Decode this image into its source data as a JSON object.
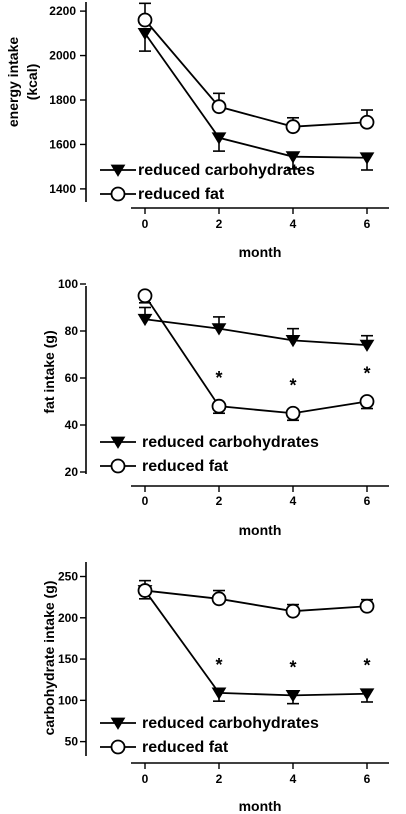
{
  "chart_data": [
    {
      "type": "line",
      "xlabel": "month",
      "ylabel": "energy intake (kcal)",
      "ylabel_lines": [
        "energy intake",
        "(kcal)"
      ],
      "x_ticks": [
        0,
        2,
        4,
        6
      ],
      "y_ticks": [
        1400,
        1600,
        1800,
        2000,
        2200
      ],
      "ylim": [
        1350,
        2250
      ],
      "x": [
        0,
        2,
        4,
        6
      ],
      "series": [
        {
          "name": "reduced carbohydrates",
          "marker": "filled-triangle-down",
          "values": [
            2100,
            1630,
            1545,
            1540
          ],
          "errors": [
            80,
            60,
            55,
            55
          ],
          "error_direction": "down"
        },
        {
          "name": "reduced fat",
          "marker": "open-circle",
          "values": [
            2160,
            1770,
            1680,
            1700
          ],
          "errors": [
            75,
            60,
            40,
            55
          ],
          "error_direction": "up"
        }
      ],
      "annotations": []
    },
    {
      "type": "line",
      "xlabel": "month",
      "ylabel": "fat intake (g)",
      "ylabel_lines": [
        "fat intake (g)"
      ],
      "x_ticks": [
        0,
        2,
        4,
        6
      ],
      "y_ticks": [
        20,
        40,
        60,
        80,
        100
      ],
      "ylim": [
        20,
        100
      ],
      "x": [
        0,
        2,
        4,
        6
      ],
      "series": [
        {
          "name": "reduced carbohydrates",
          "marker": "filled-triangle-down",
          "values": [
            85,
            81,
            76,
            74
          ],
          "errors": [
            5,
            5,
            5,
            4
          ],
          "error_direction": "up"
        },
        {
          "name": "reduced fat",
          "marker": "open-circle",
          "values": [
            95,
            48,
            45,
            50
          ],
          "errors": [
            3,
            3,
            3,
            3
          ],
          "error_direction": "down"
        }
      ],
      "annotations": [
        {
          "x": 2,
          "text": "*"
        },
        {
          "x": 4,
          "text": "*"
        },
        {
          "x": 6,
          "text": "*"
        }
      ]
    },
    {
      "type": "line",
      "xlabel": "month",
      "ylabel": "carbohydrate intake (g)",
      "ylabel_lines": [
        "carbohydrate intake (g)"
      ],
      "x_ticks": [
        0,
        2,
        4,
        6
      ],
      "y_ticks": [
        50,
        100,
        150,
        200,
        250
      ],
      "ylim": [
        35,
        270
      ],
      "x": [
        0,
        2,
        4,
        6
      ],
      "series": [
        {
          "name": "reduced carbohydrates",
          "marker": "filled-triangle-down",
          "values": [
            233,
            109,
            106,
            108
          ],
          "errors": [
            10,
            10,
            10,
            10
          ],
          "error_direction": "down"
        },
        {
          "name": "reduced fat",
          "marker": "open-circle",
          "values": [
            233,
            223,
            208,
            214
          ],
          "errors": [
            12,
            10,
            8,
            8
          ],
          "error_direction": "up"
        }
      ],
      "annotations": [
        {
          "x": 2,
          "text": "*"
        },
        {
          "x": 4,
          "text": "*"
        },
        {
          "x": 6,
          "text": "*"
        }
      ]
    }
  ]
}
